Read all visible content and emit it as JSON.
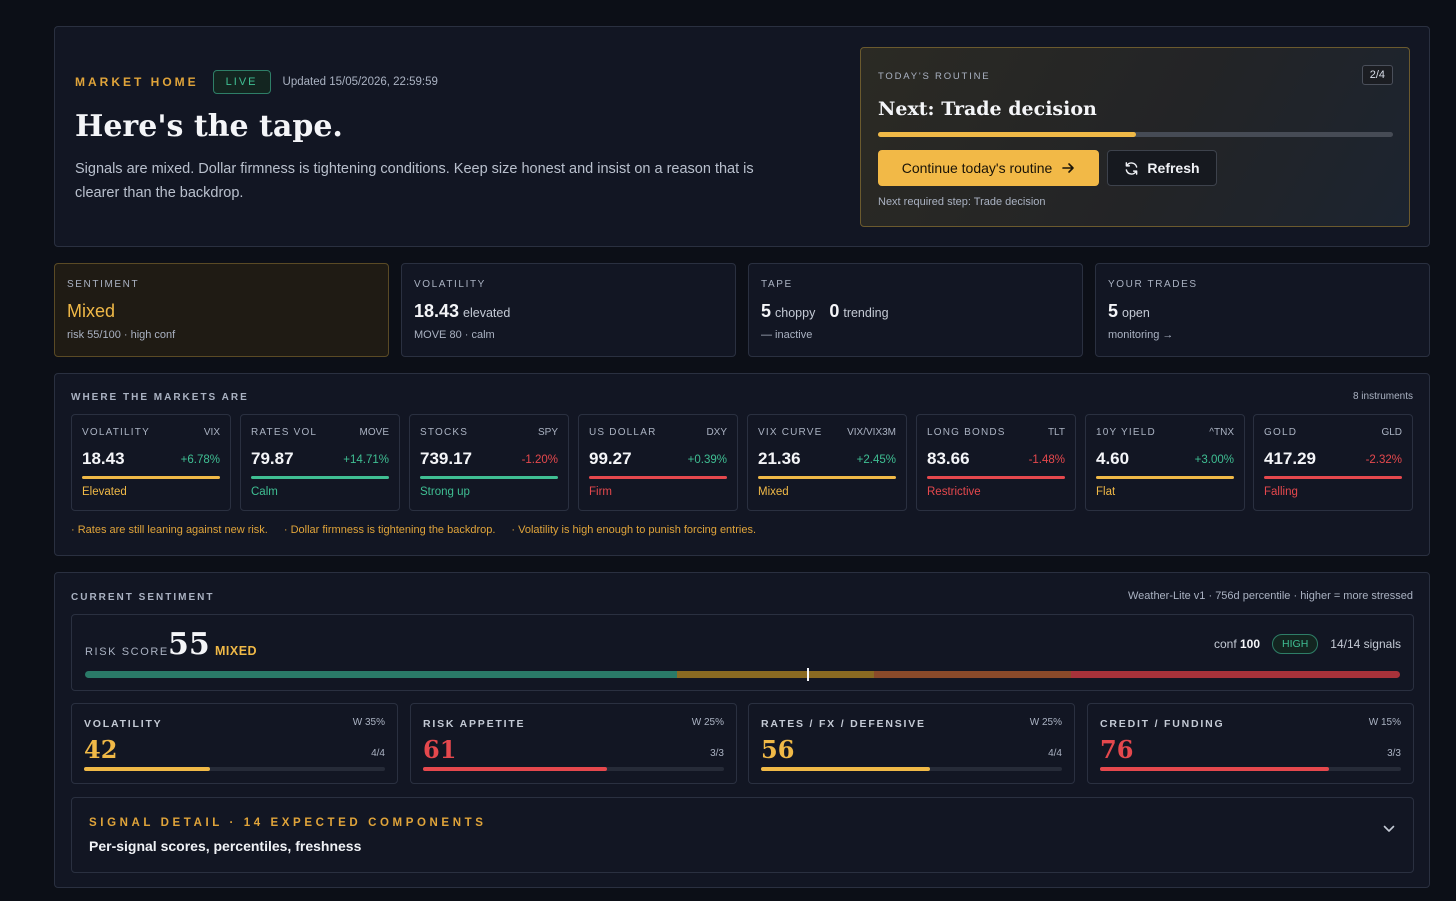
{
  "hero": {
    "kicker": "MARKET HOME",
    "live": "LIVE",
    "updated": "Updated 15/05/2026, 22:59:59",
    "title": "Here's the tape.",
    "intro": "Signals are mixed. Dollar firmness is tightening conditions. Keep size honest and insist on a reason that is clearer than the backdrop."
  },
  "routine": {
    "kicker": "TODAY'S ROUTINE",
    "step": "2/4",
    "progress": 0.5,
    "next": "Next: Trade decision",
    "continue_label": "Continue today's routine",
    "refresh_label": "Refresh",
    "hint": "Next required step: Trade decision"
  },
  "summary": {
    "sentiment": {
      "kicker": "SENTIMENT",
      "value": "Mixed",
      "sub": "risk 55/100 · high conf"
    },
    "volatility": {
      "kicker": "VOLATILITY",
      "value": "18.43",
      "unit": "elevated",
      "sub": "MOVE 80 · calm"
    },
    "tape": {
      "kicker": "TAPE",
      "choppy_n": "5",
      "choppy": "choppy",
      "trending_n": "0",
      "trending": "trending",
      "sub": "— inactive"
    },
    "trades": {
      "kicker": "YOUR TRADES",
      "value": "5",
      "unit": "open",
      "sub": "monitoring →"
    }
  },
  "markets": {
    "kicker": "WHERE THE MARKETS ARE",
    "count": "8 instruments",
    "instruments": [
      {
        "name": "VOLATILITY",
        "ticker": "VIX",
        "value": "18.43",
        "change": "+6.78%",
        "status": "Elevated",
        "tone": "amber",
        "change_tone": "green"
      },
      {
        "name": "RATES VOL",
        "ticker": "MOVE",
        "value": "79.87",
        "change": "+14.71%",
        "status": "Calm",
        "tone": "green",
        "change_tone": "green"
      },
      {
        "name": "STOCKS",
        "ticker": "SPY",
        "value": "739.17",
        "change": "-1.20%",
        "status": "Strong up",
        "tone": "green",
        "change_tone": "red"
      },
      {
        "name": "US DOLLAR",
        "ticker": "DXY",
        "value": "99.27",
        "change": "+0.39%",
        "status": "Firm",
        "tone": "red",
        "change_tone": "green"
      },
      {
        "name": "VIX CURVE",
        "ticker": "VIX/VIX3M",
        "value": "21.36",
        "change": "+2.45%",
        "status": "Mixed",
        "tone": "amber",
        "change_tone": "green"
      },
      {
        "name": "LONG BONDS",
        "ticker": "TLT",
        "value": "83.66",
        "change": "-1.48%",
        "status": "Restrictive",
        "tone": "red",
        "change_tone": "red"
      },
      {
        "name": "10Y YIELD",
        "ticker": "^TNX",
        "value": "4.60",
        "change": "+3.00%",
        "status": "Flat",
        "tone": "amber",
        "change_tone": "green"
      },
      {
        "name": "GOLD",
        "ticker": "GLD",
        "value": "417.29",
        "change": "-2.32%",
        "status": "Falling",
        "tone": "red",
        "change_tone": "red"
      }
    ],
    "notes": [
      "· Rates are still leaning against new risk.",
      "· Dollar firmness is tightening the backdrop.",
      "· Volatility is high enough to punish forcing entries."
    ]
  },
  "current": {
    "kicker": "CURRENT SENTIMENT",
    "method": "Weather-Lite v1 · 756d percentile · higher = more stressed",
    "risk_label": "RISK SCORE",
    "risk_score": "55",
    "risk_value": 55,
    "regime": "MIXED",
    "conf_label": "conf",
    "conf_value": "100",
    "conf_badge": "HIGH",
    "signals": "14/14 signals",
    "components": [
      {
        "name": "VOLATILITY",
        "weight": "W 35%",
        "score": "42",
        "value": 42,
        "count": "4/4",
        "tone": "amber"
      },
      {
        "name": "RISK APPETITE",
        "weight": "W 25%",
        "score": "61",
        "value": 61,
        "count": "3/3",
        "tone": "red"
      },
      {
        "name": "RATES / FX / DEFENSIVE",
        "weight": "W 25%",
        "score": "56",
        "value": 56,
        "count": "4/4",
        "tone": "amber"
      },
      {
        "name": "CREDIT / FUNDING",
        "weight": "W 15%",
        "score": "76",
        "value": 76,
        "count": "3/3",
        "tone": "red"
      }
    ],
    "signal_title": "SIGNAL DETAIL · 14 EXPECTED COMPONENTS",
    "signal_desc": "Per-signal scores, percentiles, freshness"
  },
  "colors": {
    "amber": "#f0b947",
    "green": "#3fbf93",
    "red": "#e5484d",
    "background": "#0c0f17"
  },
  "icons": {
    "continue": "arrow-right-icon",
    "refresh": "refresh-icon",
    "expand": "chevron-down-icon"
  }
}
